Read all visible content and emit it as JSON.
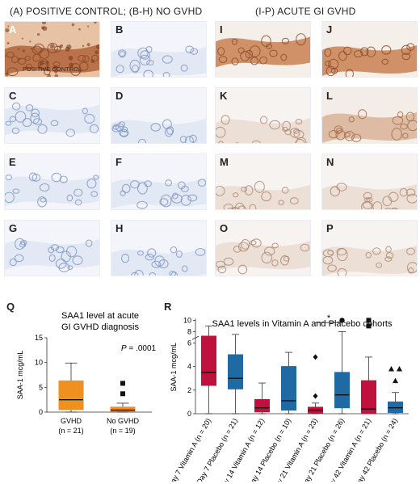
{
  "header": {
    "left_title": "(A) POSITIVE CONTROL; (B-H) NO GVHD",
    "right_title": "(I-P) ACUTE GI GVHD"
  },
  "panels": [
    {
      "id": "A",
      "label": "A",
      "type": "positive",
      "caption": "POSITIVE CONTROL"
    },
    {
      "id": "B",
      "label": "B",
      "type": "negative"
    },
    {
      "id": "C",
      "label": "C",
      "type": "negative"
    },
    {
      "id": "D",
      "label": "D",
      "type": "negative"
    },
    {
      "id": "E",
      "label": "E",
      "type": "negative"
    },
    {
      "id": "F",
      "label": "F",
      "type": "negative"
    },
    {
      "id": "G",
      "label": "G",
      "type": "negative"
    },
    {
      "id": "H",
      "label": "H",
      "type": "negative"
    },
    {
      "id": "I",
      "label": "I",
      "type": "strong"
    },
    {
      "id": "J",
      "label": "J",
      "type": "strong"
    },
    {
      "id": "K",
      "label": "K",
      "type": "weak"
    },
    {
      "id": "L",
      "label": "L",
      "type": "moderate"
    },
    {
      "id": "M",
      "label": "M",
      "type": "weak"
    },
    {
      "id": "N",
      "label": "N",
      "type": "weak"
    },
    {
      "id": "O",
      "label": "O",
      "type": "weak"
    },
    {
      "id": "P",
      "label": "P",
      "type": "weak"
    }
  ],
  "chart_data": [
    {
      "panel_letter": "Q",
      "type": "box",
      "title_line1": "SAA1 level at acute",
      "title_line2": "GI GVHD diagnosis",
      "ylabel": "SAA-1 mcg/mL",
      "ylim": [
        0,
        15
      ],
      "yticks": [
        "0",
        "5",
        "10",
        "15"
      ],
      "p_value_label": "P",
      "p_value_text": " = .0001",
      "categories": [
        {
          "name": "GVHD",
          "n": "(n = 21)",
          "color": "#f0901e",
          "whisker_low": 0.0,
          "q1": 0.5,
          "median": 2.5,
          "q3": 6.3,
          "whisker_high": 9.9,
          "outliers": []
        },
        {
          "name": "No GVHD",
          "n": "(n = 19)",
          "color": "#f0901e",
          "whisker_low": 0.0,
          "q1": 0.15,
          "median": 0.4,
          "q3": 1.0,
          "whisker_high": 1.8,
          "outliers": [
            5.8,
            3.7
          ]
        }
      ]
    },
    {
      "panel_letter": "R",
      "type": "box",
      "title": "SAA1 levels in Vitamin A and Placebo cohorts",
      "ylabel": "SAA-1 mcg/mL",
      "yscale": "broken",
      "yticks": [
        "0",
        "2",
        "4",
        "6",
        "8",
        "10"
      ],
      "significance": "*",
      "categories": [
        {
          "name": "Day 7 Vitamin A (n = 20)",
          "color": "#c0103e",
          "whisker_low": 0.0,
          "q1": 2.4,
          "median": 3.5,
          "q3": 7.2,
          "whisker_high": 9.0,
          "outliers": []
        },
        {
          "name": "Day 7 Placebo (n = 21)",
          "color": "#1f6aa5",
          "whisker_low": 0.0,
          "q1": 2.1,
          "median": 3.0,
          "q3": 5.0,
          "whisker_high": 7.5,
          "outliers": []
        },
        {
          "name": "Day 14 Vitamin A (n = 12)",
          "color": "#c0103e",
          "whisker_low": 0.0,
          "q1": 0.15,
          "median": 0.5,
          "q3": 1.2,
          "whisker_high": 2.6,
          "outliers": []
        },
        {
          "name": "Day 14 Placebo (n = 10)",
          "color": "#1f6aa5",
          "whisker_low": 0.0,
          "q1": 0.3,
          "median": 1.1,
          "q3": 4.0,
          "whisker_high": 5.2,
          "outliers": []
        },
        {
          "name": "Day 21 Vitamin A (n = 23)",
          "color": "#c0103e",
          "whisker_low": 0.0,
          "q1": 0.05,
          "median": 0.3,
          "q3": 0.55,
          "whisker_high": 0.9,
          "outliers": [
            1.5,
            4.8
          ]
        },
        {
          "name": "Day 21 Placebo (n = 26)",
          "color": "#1f6aa5",
          "whisker_low": 0.0,
          "q1": 0.5,
          "median": 1.6,
          "q3": 3.5,
          "whisker_high": 8.0,
          "outliers": [
            10.0
          ]
        },
        {
          "name": "Day 42 Vitamin A (n = 21)",
          "color": "#c0103e",
          "whisker_low": 0.0,
          "q1": 0.0,
          "median": 0.4,
          "q3": 2.8,
          "whisker_high": 4.8,
          "outliers": [
            9.0,
            10.0
          ]
        },
        {
          "name": "Day 42 Placebo (n = 24)",
          "color": "#1f6aa5",
          "whisker_low": 0.0,
          "q1": 0.1,
          "median": 0.5,
          "q3": 1.0,
          "whisker_high": 1.8,
          "outliers": [
            2.8,
            3.8,
            3.8
          ]
        }
      ]
    }
  ]
}
